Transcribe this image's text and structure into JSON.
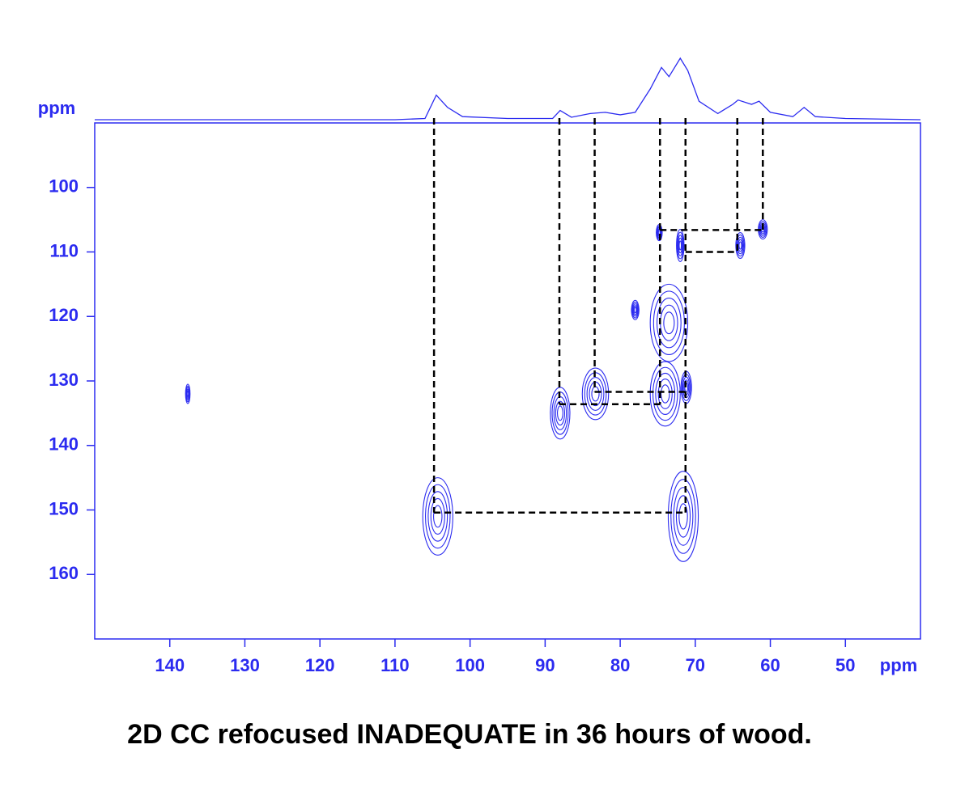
{
  "chart_data": {
    "type": "nmr2d",
    "title": "2D CC refocused INADEQUATE in 36 hours of wood.",
    "xlabel": "ppm",
    "ylabel": "ppm",
    "xlim": [
      150,
      40
    ],
    "ylim": [
      90,
      170
    ],
    "xticks": [
      140,
      130,
      120,
      110,
      100,
      90,
      80,
      70,
      60,
      50
    ],
    "yticks": [
      100,
      110,
      120,
      130,
      140,
      150,
      160
    ],
    "color": "#2b2bf0",
    "projection": {
      "x": [
        150,
        110,
        106,
        104.5,
        103,
        101,
        95,
        89,
        88,
        86.5,
        84,
        82,
        80,
        78,
        76,
        74.5,
        73.5,
        72,
        71,
        69.5,
        67,
        65,
        64.3,
        62.5,
        61.5,
        60,
        57,
        55.5,
        54,
        50,
        40
      ],
      "values": [
        0,
        0,
        2,
        40,
        20,
        5,
        2,
        2,
        15,
        4,
        10,
        12,
        8,
        12,
        50,
        85,
        70,
        100,
        80,
        30,
        10,
        25,
        32,
        25,
        30,
        12,
        5,
        20,
        5,
        2,
        0
      ]
    },
    "peaks": [
      {
        "x": 137.6,
        "y": 132,
        "wx": 0.6,
        "wy": 3
      },
      {
        "x": 104.3,
        "y": 151,
        "wx": 4,
        "wy": 12
      },
      {
        "x": 71.6,
        "y": 151,
        "wx": 4,
        "wy": 14
      },
      {
        "x": 88,
        "y": 135,
        "wx": 2.6,
        "wy": 8
      },
      {
        "x": 83.3,
        "y": 132,
        "wx": 3.5,
        "wy": 8
      },
      {
        "x": 73.5,
        "y": 121,
        "wx": 5,
        "wy": 12
      },
      {
        "x": 74,
        "y": 132,
        "wx": 4,
        "wy": 10
      },
      {
        "x": 71.2,
        "y": 131,
        "wx": 1.4,
        "wy": 5
      },
      {
        "x": 78,
        "y": 119,
        "wx": 1,
        "wy": 3
      },
      {
        "x": 74.8,
        "y": 107,
        "wx": 0.8,
        "wy": 2.5
      },
      {
        "x": 72,
        "y": 109,
        "wx": 1,
        "wy": 5
      },
      {
        "x": 64,
        "y": 109,
        "wx": 1.2,
        "wy": 4
      },
      {
        "x": 61,
        "y": 106.5,
        "wx": 1.2,
        "wy": 3
      }
    ],
    "verticals": [
      {
        "x": 104.8,
        "y": 150.4
      },
      {
        "x": 88.1,
        "y": 133.6
      },
      {
        "x": 83.4,
        "y": 131.7
      },
      {
        "x": 74.7,
        "y": 133.6
      },
      {
        "x": 71.3,
        "y": 150.4
      },
      {
        "x": 64.4,
        "y": 110
      },
      {
        "x": 61,
        "y": 106.6
      }
    ],
    "horizontals": [
      {
        "y": 150.4,
        "x1": 104.8,
        "x2": 71.3
      },
      {
        "y": 133.6,
        "x1": 88.1,
        "x2": 74.7
      },
      {
        "y": 131.7,
        "x1": 83.4,
        "x2": 71.3
      },
      {
        "y": 110,
        "x1": 71.3,
        "x2": 64.4
      },
      {
        "y": 106.6,
        "x1": 74.7,
        "x2": 61
      }
    ]
  }
}
